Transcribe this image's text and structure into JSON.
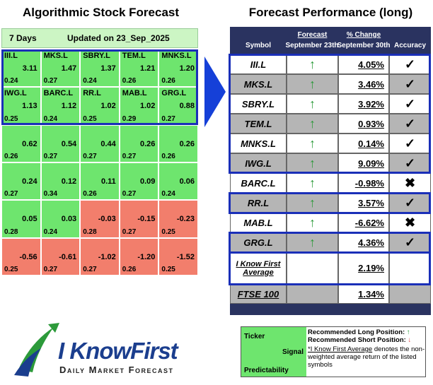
{
  "left": {
    "title": "Algorithmic Stock Forecast",
    "horizon": "7 Days",
    "updated": "Updated on 23_Sep_2025",
    "grid": [
      [
        {
          "symbol": "III.L",
          "signal": "3.11",
          "predictability": "0.24"
        },
        {
          "symbol": "MKS.L",
          "signal": "1.47",
          "predictability": "0.27"
        },
        {
          "symbol": "SBRY.L",
          "signal": "1.37",
          "predictability": "0.24"
        },
        {
          "symbol": "TEM.L",
          "signal": "1.21",
          "predictability": "0.26"
        },
        {
          "symbol": "MNKS.L",
          "signal": "1.20",
          "predictability": "0.26"
        }
      ],
      [
        {
          "symbol": "IWG.L",
          "signal": "1.13",
          "predictability": "0.25"
        },
        {
          "symbol": "BARC.L",
          "signal": "1.12",
          "predictability": "0.24"
        },
        {
          "symbol": "RR.L",
          "signal": "1.02",
          "predictability": "0.25"
        },
        {
          "symbol": "MAB.L",
          "signal": "1.02",
          "predictability": "0.29"
        },
        {
          "symbol": "GRG.L",
          "signal": "0.88",
          "predictability": "0.27"
        }
      ],
      [
        {
          "signal": "0.62",
          "predictability": "0.26"
        },
        {
          "signal": "0.54",
          "predictability": "0.27"
        },
        {
          "signal": "0.44",
          "predictability": "0.27"
        },
        {
          "signal": "0.26",
          "predictability": "0.27"
        },
        {
          "signal": "0.26",
          "predictability": "0.26"
        }
      ],
      [
        {
          "signal": "0.24",
          "predictability": "0.27"
        },
        {
          "signal": "0.12",
          "predictability": "0.34"
        },
        {
          "signal": "0.11",
          "predictability": "0.26"
        },
        {
          "signal": "0.09",
          "predictability": "0.27"
        },
        {
          "signal": "0.06",
          "predictability": "0.24"
        }
      ],
      [
        {
          "signal": "0.05",
          "predictability": "0.28"
        },
        {
          "signal": "0.03",
          "predictability": "0.24"
        },
        {
          "signal": "-0.03",
          "predictability": "0.28"
        },
        {
          "signal": "-0.15",
          "predictability": "0.27"
        },
        {
          "signal": "-0.23",
          "predictability": "0.25"
        }
      ],
      [
        {
          "signal": "-0.56",
          "predictability": "0.25"
        },
        {
          "signal": "-0.61",
          "predictability": "0.27"
        },
        {
          "signal": "-1.02",
          "predictability": "0.27"
        },
        {
          "signal": "-1.20",
          "predictability": "0.26"
        },
        {
          "signal": "-1.52",
          "predictability": "0.25"
        }
      ]
    ]
  },
  "right": {
    "title": "Forecast Performance (long)",
    "headers": {
      "symbol": "Symbol",
      "forecast": "Forecast",
      "forecast_date": "September 23th",
      "change": "% Change",
      "change_date": "September 30th",
      "accuracy": "Accuracy"
    },
    "rows": [
      {
        "symbol": "III.L",
        "forecast": "↑",
        "change": "4.05%",
        "accuracy": "✓"
      },
      {
        "symbol": "MKS.L",
        "forecast": "↑",
        "change": "3.46%",
        "accuracy": "✓"
      },
      {
        "symbol": "SBRY.L",
        "forecast": "↑",
        "change": "3.92%",
        "accuracy": "✓"
      },
      {
        "symbol": "TEM.L",
        "forecast": "↑",
        "change": "0.93%",
        "accuracy": "✓"
      },
      {
        "symbol": "MNKS.L",
        "forecast": "↑",
        "change": "0.14%",
        "accuracy": "✓"
      },
      {
        "symbol": "IWG.L",
        "forecast": "↑",
        "change": "9.09%",
        "accuracy": "✓"
      },
      {
        "symbol": "BARC.L",
        "forecast": "↑",
        "change": "-0.98%",
        "accuracy": "✖"
      },
      {
        "symbol": "RR.L",
        "forecast": "↑",
        "change": "3.57%",
        "accuracy": "✓"
      },
      {
        "symbol": "MAB.L",
        "forecast": "↑",
        "change": "-6.62%",
        "accuracy": "✖"
      },
      {
        "symbol": "GRG.L",
        "forecast": "↑",
        "change": "4.36%",
        "accuracy": "✓"
      }
    ],
    "average": {
      "label": "I Know First Average",
      "change": "2.19%"
    },
    "benchmark": {
      "label": "FTSE 100",
      "change": "1.34%"
    }
  },
  "legend": {
    "ticker": "Ticker",
    "signal": "Signal",
    "predictability": "Predictability",
    "long": "Recommended Long Position:",
    "long_icon": "↑",
    "short": "Recommended Short Position:",
    "short_icon": "↓",
    "note_term": "*I Know First Average",
    "note": "denotes the non-weighted average return of the listed symbols"
  },
  "logo": {
    "brand_a": "I Know",
    "brand_b": "First",
    "tagline": "Daily Market Forecast"
  }
}
